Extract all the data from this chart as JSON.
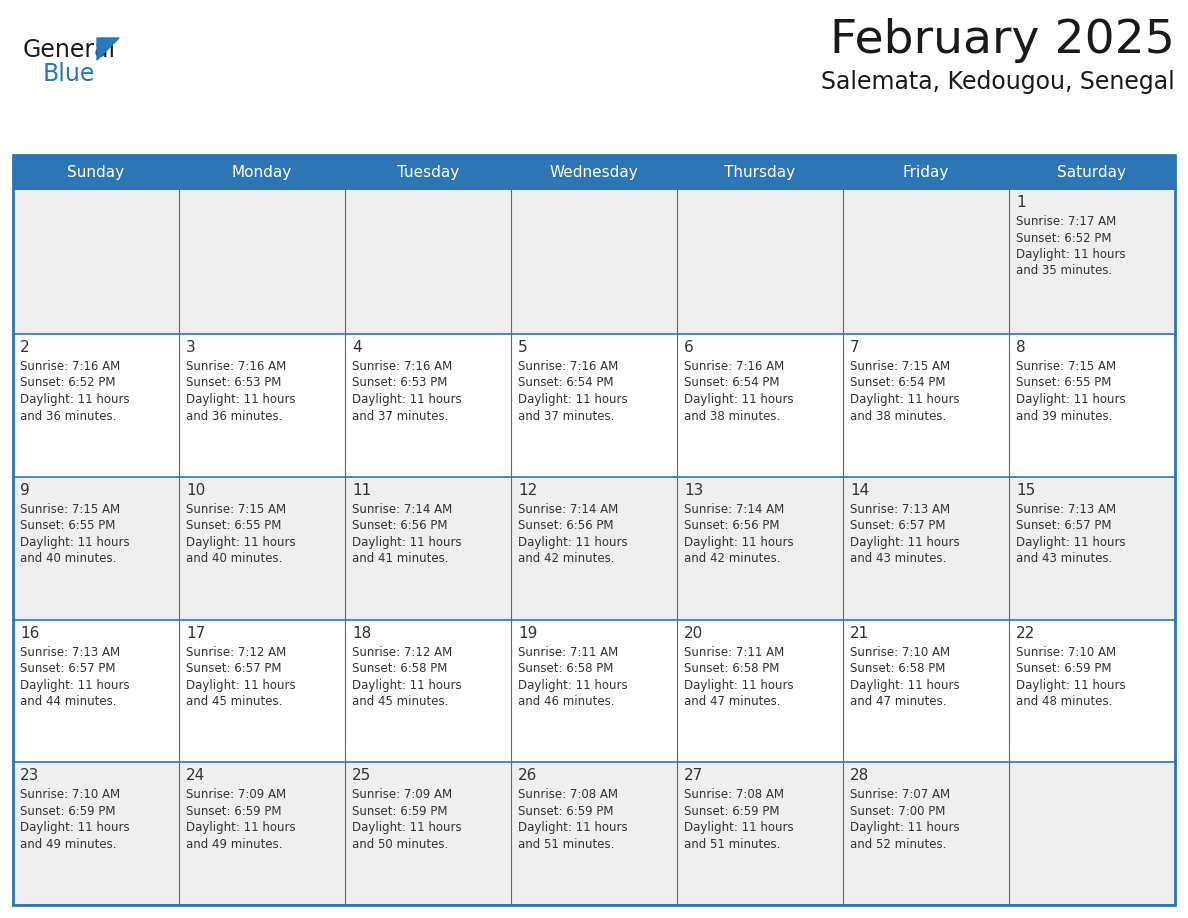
{
  "title": "February 2025",
  "subtitle": "Salemata, Kedougou, Senegal",
  "header_bg_color": "#2E75B6",
  "header_text_color": "#FFFFFF",
  "row_bg_even": "#EFEFEF",
  "row_bg_odd": "#FFFFFF",
  "cell_text_color": "#333333",
  "day_num_color": "#333333",
  "border_color": "#2E75B6",
  "days_of_week": [
    "Sunday",
    "Monday",
    "Tuesday",
    "Wednesday",
    "Thursday",
    "Friday",
    "Saturday"
  ],
  "calendar_data": [
    [
      null,
      null,
      null,
      null,
      null,
      null,
      {
        "day": 1,
        "sunrise": "7:17 AM",
        "sunset": "6:52 PM",
        "daylight": "11 hours",
        "daylight2": "and 35 minutes."
      }
    ],
    [
      {
        "day": 2,
        "sunrise": "7:16 AM",
        "sunset": "6:52 PM",
        "daylight": "11 hours",
        "daylight2": "and 36 minutes."
      },
      {
        "day": 3,
        "sunrise": "7:16 AM",
        "sunset": "6:53 PM",
        "daylight": "11 hours",
        "daylight2": "and 36 minutes."
      },
      {
        "day": 4,
        "sunrise": "7:16 AM",
        "sunset": "6:53 PM",
        "daylight": "11 hours",
        "daylight2": "and 37 minutes."
      },
      {
        "day": 5,
        "sunrise": "7:16 AM",
        "sunset": "6:54 PM",
        "daylight": "11 hours",
        "daylight2": "and 37 minutes."
      },
      {
        "day": 6,
        "sunrise": "7:16 AM",
        "sunset": "6:54 PM",
        "daylight": "11 hours",
        "daylight2": "and 38 minutes."
      },
      {
        "day": 7,
        "sunrise": "7:15 AM",
        "sunset": "6:54 PM",
        "daylight": "11 hours",
        "daylight2": "and 38 minutes."
      },
      {
        "day": 8,
        "sunrise": "7:15 AM",
        "sunset": "6:55 PM",
        "daylight": "11 hours",
        "daylight2": "and 39 minutes."
      }
    ],
    [
      {
        "day": 9,
        "sunrise": "7:15 AM",
        "sunset": "6:55 PM",
        "daylight": "11 hours",
        "daylight2": "and 40 minutes."
      },
      {
        "day": 10,
        "sunrise": "7:15 AM",
        "sunset": "6:55 PM",
        "daylight": "11 hours",
        "daylight2": "and 40 minutes."
      },
      {
        "day": 11,
        "sunrise": "7:14 AM",
        "sunset": "6:56 PM",
        "daylight": "11 hours",
        "daylight2": "and 41 minutes."
      },
      {
        "day": 12,
        "sunrise": "7:14 AM",
        "sunset": "6:56 PM",
        "daylight": "11 hours",
        "daylight2": "and 42 minutes."
      },
      {
        "day": 13,
        "sunrise": "7:14 AM",
        "sunset": "6:56 PM",
        "daylight": "11 hours",
        "daylight2": "and 42 minutes."
      },
      {
        "day": 14,
        "sunrise": "7:13 AM",
        "sunset": "6:57 PM",
        "daylight": "11 hours",
        "daylight2": "and 43 minutes."
      },
      {
        "day": 15,
        "sunrise": "7:13 AM",
        "sunset": "6:57 PM",
        "daylight": "11 hours",
        "daylight2": "and 43 minutes."
      }
    ],
    [
      {
        "day": 16,
        "sunrise": "7:13 AM",
        "sunset": "6:57 PM",
        "daylight": "11 hours",
        "daylight2": "and 44 minutes."
      },
      {
        "day": 17,
        "sunrise": "7:12 AM",
        "sunset": "6:57 PM",
        "daylight": "11 hours",
        "daylight2": "and 45 minutes."
      },
      {
        "day": 18,
        "sunrise": "7:12 AM",
        "sunset": "6:58 PM",
        "daylight": "11 hours",
        "daylight2": "and 45 minutes."
      },
      {
        "day": 19,
        "sunrise": "7:11 AM",
        "sunset": "6:58 PM",
        "daylight": "11 hours",
        "daylight2": "and 46 minutes."
      },
      {
        "day": 20,
        "sunrise": "7:11 AM",
        "sunset": "6:58 PM",
        "daylight": "11 hours",
        "daylight2": "and 47 minutes."
      },
      {
        "day": 21,
        "sunrise": "7:10 AM",
        "sunset": "6:58 PM",
        "daylight": "11 hours",
        "daylight2": "and 47 minutes."
      },
      {
        "day": 22,
        "sunrise": "7:10 AM",
        "sunset": "6:59 PM",
        "daylight": "11 hours",
        "daylight2": "and 48 minutes."
      }
    ],
    [
      {
        "day": 23,
        "sunrise": "7:10 AM",
        "sunset": "6:59 PM",
        "daylight": "11 hours",
        "daylight2": "and 49 minutes."
      },
      {
        "day": 24,
        "sunrise": "7:09 AM",
        "sunset": "6:59 PM",
        "daylight": "11 hours",
        "daylight2": "and 49 minutes."
      },
      {
        "day": 25,
        "sunrise": "7:09 AM",
        "sunset": "6:59 PM",
        "daylight": "11 hours",
        "daylight2": "and 50 minutes."
      },
      {
        "day": 26,
        "sunrise": "7:08 AM",
        "sunset": "6:59 PM",
        "daylight": "11 hours",
        "daylight2": "and 51 minutes."
      },
      {
        "day": 27,
        "sunrise": "7:08 AM",
        "sunset": "6:59 PM",
        "daylight": "11 hours",
        "daylight2": "and 51 minutes."
      },
      {
        "day": 28,
        "sunrise": "7:07 AM",
        "sunset": "7:00 PM",
        "daylight": "11 hours",
        "daylight2": "and 52 minutes."
      },
      null
    ]
  ],
  "fig_width": 11.88,
  "fig_height": 9.18
}
